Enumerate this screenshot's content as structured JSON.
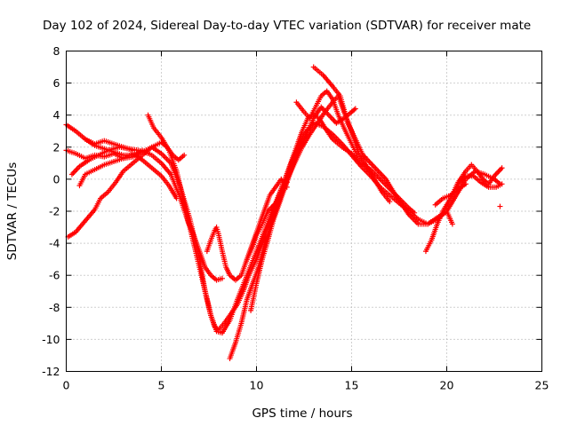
{
  "chart_data": {
    "type": "scatter",
    "title": "Day 102 of 2024, Sidereal Day-to-day VTEC variation (SDTVAR) for receiver mate",
    "xlabel": "GPS time / hours",
    "ylabel": "SDTVAR / TECUs",
    "xlim": [
      0,
      25
    ],
    "ylim": [
      -12,
      8
    ],
    "x_ticks": [
      0,
      5,
      10,
      15,
      20,
      25
    ],
    "y_ticks": [
      -12,
      -10,
      -8,
      -6,
      -4,
      -2,
      0,
      2,
      4,
      6,
      8
    ],
    "grid": true,
    "marker": "plus",
    "series_color": "#ff0000",
    "tracks": [
      [
        [
          0.0,
          3.4
        ],
        [
          0.5,
          3.0
        ],
        [
          1.0,
          2.5
        ],
        [
          1.5,
          2.1
        ],
        [
          2.0,
          1.9
        ],
        [
          2.5,
          1.7
        ],
        [
          3.0,
          1.5
        ],
        [
          3.5,
          1.5
        ],
        [
          4.0,
          1.7
        ],
        [
          4.5,
          2.0
        ],
        [
          5.0,
          1.6
        ],
        [
          5.5,
          1.0
        ],
        [
          6.0,
          -0.5
        ],
        [
          6.5,
          -2.5
        ],
        [
          7.0,
          -5.0
        ],
        [
          7.3,
          -7.0
        ],
        [
          7.6,
          -8.5
        ],
        [
          7.9,
          -9.5
        ],
        [
          8.2,
          -9.6
        ],
        [
          8.6,
          -8.8
        ],
        [
          9.0,
          -7.5
        ],
        [
          9.5,
          -6.0
        ],
        [
          10.0,
          -4.5
        ],
        [
          10.5,
          -3.0
        ],
        [
          11.0,
          -1.5
        ],
        [
          11.5,
          0.0
        ],
        [
          12.0,
          1.5
        ],
        [
          12.5,
          2.8
        ],
        [
          13.0,
          3.5
        ],
        [
          13.5,
          3.3
        ],
        [
          14.0,
          2.8
        ],
        [
          14.5,
          2.2
        ],
        [
          15.0,
          1.5
        ],
        [
          15.5,
          0.8
        ],
        [
          16.0,
          0.2
        ],
        [
          16.5,
          -0.5
        ],
        [
          17.0,
          -1.0
        ],
        [
          17.5,
          -1.5
        ],
        [
          18.0,
          -2.0
        ],
        [
          18.5,
          -2.5
        ],
        [
          19.0,
          -2.8
        ],
        [
          19.5,
          -2.5
        ],
        [
          20.0,
          -2.0
        ],
        [
          20.5,
          -1.0
        ],
        [
          21.0,
          0.0
        ],
        [
          21.5,
          0.5
        ],
        [
          22.0,
          0.3
        ],
        [
          22.5,
          0.0
        ],
        [
          22.8,
          -0.3
        ]
      ],
      [
        [
          0.0,
          1.8
        ],
        [
          0.5,
          1.6
        ],
        [
          1.0,
          1.3
        ],
        [
          1.5,
          1.5
        ],
        [
          2.0,
          1.4
        ],
        [
          2.5,
          1.6
        ],
        [
          3.0,
          1.3
        ],
        [
          3.5,
          1.4
        ],
        [
          4.0,
          1.8
        ],
        [
          4.5,
          1.5
        ],
        [
          5.0,
          1.0
        ],
        [
          5.5,
          0.3
        ],
        [
          6.0,
          -1.2
        ],
        [
          6.5,
          -3.0
        ],
        [
          6.8,
          -4.5
        ],
        [
          7.0,
          -5.5
        ],
        [
          7.2,
          -6.5
        ],
        [
          7.4,
          -7.5
        ],
        [
          7.6,
          -8.5
        ],
        [
          7.8,
          -9.2
        ],
        [
          8.0,
          -9.4
        ],
        [
          8.3,
          -9.0
        ],
        [
          8.6,
          -8.5
        ],
        [
          9.0,
          -7.8
        ],
        [
          9.3,
          -7.0
        ],
        [
          9.6,
          -6.0
        ],
        [
          10.0,
          -5.0
        ],
        [
          10.3,
          -4.0
        ],
        [
          10.6,
          -3.0
        ],
        [
          10.9,
          -2.0
        ],
        [
          11.2,
          -1.0
        ],
        [
          11.5,
          0.0
        ],
        [
          11.8,
          1.0
        ],
        [
          12.1,
          2.0
        ],
        [
          12.4,
          3.0
        ],
        [
          12.7,
          3.8
        ],
        [
          13.0,
          4.0
        ],
        [
          13.3,
          3.8
        ],
        [
          13.6,
          3.2
        ],
        [
          14.0,
          2.5
        ],
        [
          14.5,
          2.0
        ],
        [
          15.0,
          1.6
        ],
        [
          15.5,
          1.0
        ],
        [
          16.0,
          0.6
        ],
        [
          16.5,
          0.0
        ],
        [
          17.0,
          -0.6
        ],
        [
          17.5,
          -1.2
        ],
        [
          18.0,
          -1.8
        ],
        [
          18.3,
          -2.1
        ]
      ],
      [
        [
          0.1,
          -3.6
        ],
        [
          0.5,
          -3.3
        ],
        [
          1.0,
          -2.6
        ],
        [
          1.5,
          -1.9
        ],
        [
          1.8,
          -1.2
        ],
        [
          2.2,
          -0.8
        ],
        [
          2.6,
          -0.2
        ],
        [
          3.0,
          0.5
        ],
        [
          3.5,
          1.0
        ],
        [
          4.0,
          1.5
        ],
        [
          4.5,
          2.0
        ],
        [
          5.0,
          2.3
        ],
        [
          5.3,
          2.0
        ],
        [
          5.6,
          1.5
        ],
        [
          5.9,
          1.2
        ],
        [
          6.2,
          1.5
        ]
      ],
      [
        [
          4.3,
          4.0
        ],
        [
          4.6,
          3.2
        ],
        [
          5.0,
          2.6
        ],
        [
          5.4,
          1.8
        ],
        [
          5.8,
          0.5
        ],
        [
          6.1,
          -1.0
        ],
        [
          6.4,
          -2.6
        ],
        [
          6.7,
          -3.5
        ],
        [
          7.0,
          -4.5
        ],
        [
          7.3,
          -5.5
        ],
        [
          7.6,
          -6.0
        ],
        [
          7.9,
          -6.3
        ],
        [
          8.2,
          -6.2
        ]
      ],
      [
        [
          0.7,
          -0.4
        ],
        [
          1.0,
          0.3
        ],
        [
          1.5,
          0.6
        ],
        [
          2.0,
          0.9
        ],
        [
          2.5,
          1.1
        ],
        [
          3.0,
          1.3
        ],
        [
          3.5,
          1.6
        ],
        [
          4.0,
          1.2
        ],
        [
          4.5,
          0.7
        ],
        [
          5.0,
          0.2
        ],
        [
          5.4,
          -0.4
        ],
        [
          5.8,
          -1.2
        ]
      ],
      [
        [
          0.3,
          0.3
        ],
        [
          0.7,
          0.8
        ],
        [
          1.2,
          1.2
        ],
        [
          1.7,
          1.5
        ],
        [
          2.2,
          1.8
        ],
        [
          2.8,
          2.0
        ],
        [
          3.3,
          1.9
        ],
        [
          3.8,
          1.8
        ],
        [
          4.3,
          1.6
        ]
      ],
      [
        [
          1.0,
          2.5
        ],
        [
          1.5,
          2.2
        ],
        [
          2.0,
          2.4
        ],
        [
          2.5,
          2.2
        ],
        [
          3.0,
          2.0
        ],
        [
          3.5,
          1.8
        ]
      ],
      [
        [
          7.4,
          -4.5
        ],
        [
          7.6,
          -3.8
        ],
        [
          7.8,
          -3.2
        ],
        [
          7.9,
          -3.0
        ],
        [
          8.0,
          -3.4
        ],
        [
          8.2,
          -4.5
        ],
        [
          8.4,
          -5.5
        ],
        [
          8.6,
          -6.0
        ],
        [
          8.9,
          -6.3
        ],
        [
          9.2,
          -6.0
        ],
        [
          9.5,
          -5.0
        ],
        [
          9.8,
          -4.0
        ],
        [
          10.1,
          -3.0
        ],
        [
          10.4,
          -2.0
        ],
        [
          10.7,
          -1.0
        ],
        [
          11.0,
          -0.5
        ],
        [
          11.3,
          0.0
        ],
        [
          11.6,
          -0.5
        ]
      ],
      [
        [
          8.6,
          -11.2
        ],
        [
          8.9,
          -10.2
        ],
        [
          9.2,
          -9.0
        ],
        [
          9.5,
          -7.5
        ],
        [
          9.8,
          -6.5
        ],
        [
          10.1,
          -5.5
        ],
        [
          10.4,
          -4.2
        ],
        [
          10.7,
          -3.0
        ],
        [
          11.0,
          -2.0
        ],
        [
          11.3,
          -1.0
        ],
        [
          11.6,
          0.0
        ],
        [
          12.0,
          1.0
        ],
        [
          12.4,
          2.0
        ],
        [
          12.8,
          2.8
        ],
        [
          13.2,
          3.5
        ],
        [
          13.6,
          4.2
        ],
        [
          14.0,
          4.8
        ],
        [
          14.3,
          5.2
        ],
        [
          14.6,
          4.2
        ],
        [
          15.0,
          3.0
        ],
        [
          15.4,
          1.5
        ],
        [
          15.8,
          0.8
        ],
        [
          16.2,
          0.0
        ],
        [
          16.6,
          -0.8
        ],
        [
          17.0,
          -1.4
        ]
      ],
      [
        [
          9.7,
          -8.2
        ],
        [
          10.0,
          -6.5
        ],
        [
          10.3,
          -5.0
        ],
        [
          10.6,
          -3.8
        ],
        [
          10.9,
          -2.5
        ],
        [
          11.2,
          -1.5
        ],
        [
          11.5,
          -0.5
        ],
        [
          11.8,
          0.5
        ],
        [
          12.1,
          1.5
        ],
        [
          12.4,
          2.2
        ],
        [
          12.7,
          3.0
        ],
        [
          13.0,
          3.8
        ],
        [
          13.4,
          4.5
        ],
        [
          13.8,
          4.0
        ],
        [
          14.2,
          3.5
        ],
        [
          14.6,
          3.8
        ],
        [
          15.0,
          4.2
        ],
        [
          15.2,
          4.4
        ]
      ],
      [
        [
          9.5,
          -5.0
        ],
        [
          9.8,
          -4.2
        ],
        [
          10.0,
          -3.5
        ],
        [
          10.3,
          -2.8
        ],
        [
          10.6,
          -2.0
        ],
        [
          11.0,
          -1.5
        ],
        [
          11.3,
          -0.8
        ],
        [
          11.6,
          -0.2
        ]
      ],
      [
        [
          12.1,
          4.8
        ],
        [
          12.5,
          4.2
        ],
        [
          12.8,
          3.8
        ],
        [
          13.1,
          4.5
        ],
        [
          13.4,
          5.2
        ],
        [
          13.7,
          5.5
        ],
        [
          14.0,
          5.0
        ],
        [
          14.3,
          4.0
        ],
        [
          14.6,
          3.2
        ],
        [
          15.0,
          2.2
        ],
        [
          15.3,
          1.5
        ]
      ],
      [
        [
          13.0,
          7.0
        ],
        [
          13.5,
          6.5
        ],
        [
          14.0,
          5.8
        ],
        [
          14.4,
          5.2
        ],
        [
          14.8,
          3.5
        ],
        [
          15.2,
          2.5
        ],
        [
          15.6,
          1.5
        ],
        [
          16.0,
          1.0
        ],
        [
          16.4,
          0.5
        ],
        [
          16.8,
          0.0
        ],
        [
          17.2,
          -0.8
        ],
        [
          17.6,
          -1.5
        ],
        [
          18.0,
          -2.2
        ],
        [
          18.5,
          -2.8
        ],
        [
          19.0,
          -2.8
        ],
        [
          19.5,
          -2.4
        ],
        [
          20.0,
          -2.0
        ],
        [
          20.3,
          -2.8
        ]
      ],
      [
        [
          18.9,
          -4.5
        ],
        [
          19.2,
          -3.8
        ],
        [
          19.5,
          -2.8
        ],
        [
          19.8,
          -2.0
        ],
        [
          20.2,
          -1.2
        ],
        [
          20.6,
          -0.2
        ],
        [
          21.0,
          0.5
        ],
        [
          21.3,
          0.9
        ],
        [
          21.6,
          0.5
        ],
        [
          21.9,
          0.0
        ],
        [
          22.2,
          -0.3
        ],
        [
          22.5,
          0.2
        ],
        [
          22.9,
          0.7
        ]
      ],
      [
        [
          20.3,
          -1.0
        ],
        [
          20.6,
          -0.3
        ],
        [
          21.0,
          0.2
        ],
        [
          21.4,
          0.2
        ],
        [
          21.8,
          -0.2
        ],
        [
          22.2,
          -0.5
        ],
        [
          22.6,
          -0.5
        ],
        [
          22.9,
          -0.3
        ]
      ],
      [
        [
          19.4,
          -1.6
        ],
        [
          19.8,
          -1.2
        ],
        [
          20.2,
          -1.0
        ],
        [
          20.6,
          -0.6
        ],
        [
          21.0,
          -0.3
        ]
      ]
    ],
    "isolated_points": [
      [
        22.8,
        -1.7
      ],
      [
        15.7,
        1.4
      ]
    ]
  }
}
